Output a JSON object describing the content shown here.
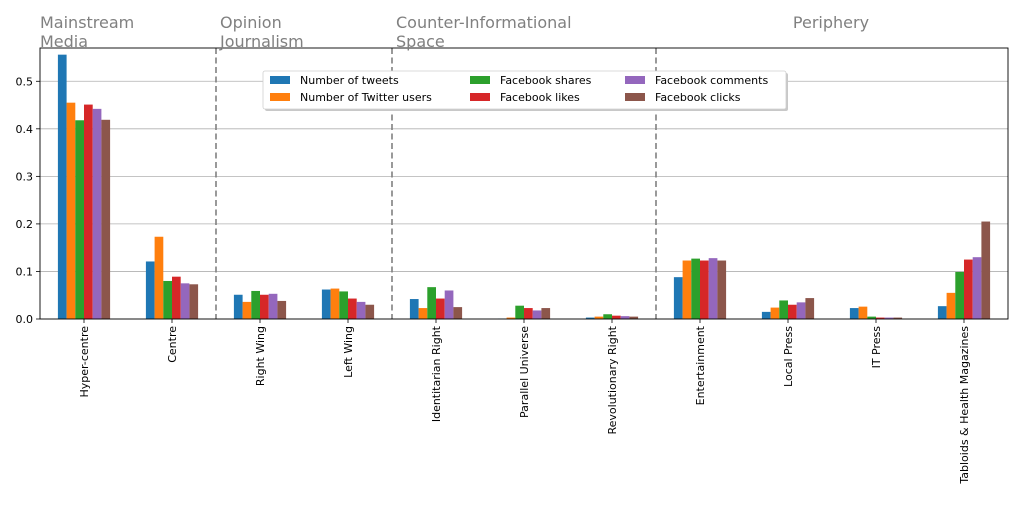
{
  "chart_data": {
    "type": "bar",
    "categories": [
      "Hyper-centre",
      "Centre",
      "Right Wing",
      "Left Wing",
      "Identitarian Right",
      "Parallel Universe",
      "Revolutionary Right",
      "Entertainment",
      "Local Press",
      "IT Press",
      "Tabloids & Health Magazines"
    ],
    "series": [
      {
        "name": "Number of tweets",
        "color": "#1f77b4",
        "values": [
          0.556,
          0.121,
          0.051,
          0.062,
          0.042,
          0.001,
          0.003,
          0.088,
          0.015,
          0.023,
          0.027
        ]
      },
      {
        "name": "Number of Twitter users",
        "color": "#ff7f0e",
        "values": [
          0.455,
          0.173,
          0.036,
          0.064,
          0.023,
          0.003,
          0.005,
          0.123,
          0.024,
          0.026,
          0.055
        ]
      },
      {
        "name": "Facebook shares",
        "color": "#2ca02c",
        "values": [
          0.418,
          0.08,
          0.059,
          0.058,
          0.067,
          0.028,
          0.01,
          0.127,
          0.039,
          0.005,
          0.099
        ]
      },
      {
        "name": "Facebook likes",
        "color": "#d62728",
        "values": [
          0.451,
          0.089,
          0.051,
          0.043,
          0.043,
          0.023,
          0.007,
          0.123,
          0.03,
          0.003,
          0.125
        ]
      },
      {
        "name": "Facebook comments",
        "color": "#9467bd",
        "values": [
          0.442,
          0.075,
          0.053,
          0.036,
          0.06,
          0.018,
          0.006,
          0.128,
          0.035,
          0.003,
          0.13
        ]
      },
      {
        "name": "Facebook clicks",
        "color": "#8c564b",
        "values": [
          0.419,
          0.073,
          0.038,
          0.03,
          0.025,
          0.023,
          0.005,
          0.123,
          0.044,
          0.003,
          0.205
        ]
      }
    ],
    "ylim": [
      0,
      0.57
    ],
    "yticks": [
      "0.0",
      "0.1",
      "0.2",
      "0.3",
      "0.4",
      "0.5"
    ],
    "grid": "horizontal",
    "legend_placement": "upper-center",
    "group_labels": [
      {
        "lines": [
          "Mainstream",
          "Media"
        ]
      },
      {
        "lines": [
          "Opinion",
          "Journalism"
        ]
      },
      {
        "lines": [
          "Counter-Informational",
          "Space"
        ]
      },
      {
        "lines": [
          "Periphery"
        ]
      }
    ],
    "group_starts": [
      0,
      2,
      4,
      7
    ],
    "group_label_color": "#808080",
    "divider_color": "#808080"
  }
}
